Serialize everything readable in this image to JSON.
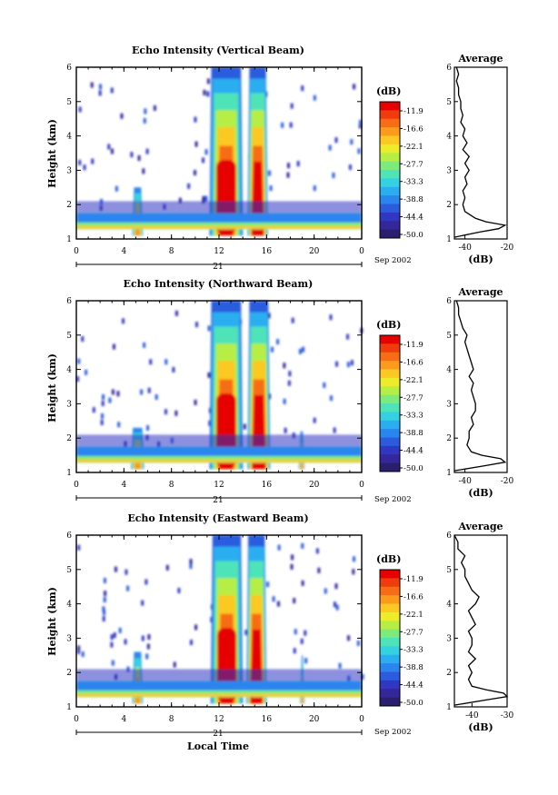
{
  "figure": {
    "month_label": "Sep 2002",
    "month_labels": [
      "Sep 2002",
      "Sep 2002",
      "Sep 2002"
    ],
    "xlabel": "Local Time",
    "date_tick": "21"
  },
  "chart_data": [
    {
      "type": "heatmap",
      "title": "Echo Intensity (Vertical Beam)",
      "ylabel": "Height (km)",
      "xlabel": "",
      "x_ticks": [
        "0",
        "4",
        "8",
        "12",
        "16",
        "20",
        "0"
      ],
      "x_range_hours": [
        0,
        24
      ],
      "y_ticks": [
        "1",
        "2",
        "3",
        "4",
        "5",
        "6"
      ],
      "ylim": [
        1,
        6
      ],
      "colorbar": {
        "unit": "(dB)",
        "labels": [
          "-11.9",
          "-16.6",
          "-22.1",
          "-27.7",
          "-33.3",
          "-38.8",
          "-44.4",
          "-50.0"
        ],
        "colors": [
          "#e60000",
          "#f03c0c",
          "#f76d16",
          "#fc9a1d",
          "#fcc824",
          "#ecec2b",
          "#b6ee44",
          "#7deb7c",
          "#4fe3b8",
          "#34d1e3",
          "#2aaef0",
          "#2a86ee",
          "#2c5bde",
          "#3037c2",
          "#33279a",
          "#2a1f6e"
        ]
      },
      "features": [
        {
          "name": "cloud-main",
          "t_start": 11.2,
          "t_end": 14.0,
          "top_km": 6.0
        },
        {
          "name": "cloud-secondary",
          "t_start": 14.4,
          "t_end": 16.1,
          "top_km": 6.0
        },
        {
          "name": "convection-5h",
          "t_start": 4.7,
          "t_end": 5.6,
          "top_km": 2.5
        },
        {
          "name": "boundary-layer",
          "t_start": 0,
          "t_end": 24,
          "top_km": 1.8
        }
      ],
      "average": {
        "title": "Average",
        "xlabel": "(dB)",
        "x_ticks": [
          "-40",
          "-20"
        ],
        "xlim": [
          -45,
          -20
        ],
        "y": [
          1.05,
          1.2,
          1.3,
          1.4,
          1.5,
          1.6,
          1.8,
          2.0,
          2.2,
          2.4,
          2.6,
          2.8,
          3.0,
          3.2,
          3.4,
          3.6,
          3.8,
          4.0,
          4.2,
          4.4,
          4.6,
          4.8,
          5.0,
          5.2,
          5.4,
          5.6,
          5.8,
          6.0
        ],
        "x": [
          -45,
          -33,
          -24,
          -21,
          -30,
          -35,
          -40,
          -41,
          -40,
          -41,
          -39,
          -40,
          -38,
          -40,
          -38,
          -41,
          -39,
          -41,
          -40,
          -42,
          -41,
          -42,
          -42,
          -43,
          -43,
          -44,
          -43,
          -44
        ]
      }
    },
    {
      "type": "heatmap",
      "title": "Echo Intensity (Northward Beam)",
      "ylabel": "Height (km)",
      "xlabel": "",
      "x_ticks": [
        "0",
        "4",
        "8",
        "12",
        "16",
        "20",
        "0"
      ],
      "x_range_hours": [
        0,
        24
      ],
      "y_ticks": [
        "1",
        "2",
        "3",
        "4",
        "5",
        "6"
      ],
      "ylim": [
        1,
        6
      ],
      "colorbar": {
        "unit": "(dB)",
        "labels": [
          "-11.9",
          "-16.6",
          "-22.1",
          "-27.7",
          "-33.3",
          "-38.8",
          "-44.4",
          "-50.0"
        ],
        "colors": [
          "#e60000",
          "#f03c0c",
          "#f76d16",
          "#fc9a1d",
          "#fcc824",
          "#ecec2b",
          "#b6ee44",
          "#7deb7c",
          "#4fe3b8",
          "#34d1e3",
          "#2aaef0",
          "#2a86ee",
          "#2c5bde",
          "#3037c2",
          "#33279a",
          "#2a1f6e"
        ]
      },
      "features": [
        {
          "name": "cloud-main",
          "t_start": 11.2,
          "t_end": 14.0,
          "top_km": 6.0
        },
        {
          "name": "cloud-secondary",
          "t_start": 14.4,
          "t_end": 16.3,
          "top_km": 6.0
        },
        {
          "name": "convection-5h",
          "t_start": 4.6,
          "t_end": 5.7,
          "top_km": 2.3
        },
        {
          "name": "convection-19h",
          "t_start": 18.7,
          "t_end": 19.2,
          "top_km": 2.2
        },
        {
          "name": "boundary-layer",
          "t_start": 0,
          "t_end": 24,
          "top_km": 1.8
        }
      ],
      "average": {
        "title": "Average",
        "xlabel": "(dB)",
        "x_ticks": [
          "-40",
          "-20"
        ],
        "xlim": [
          -45,
          -20
        ],
        "y": [
          1.05,
          1.2,
          1.3,
          1.4,
          1.5,
          1.6,
          1.8,
          2.0,
          2.2,
          2.4,
          2.6,
          2.8,
          3.0,
          3.2,
          3.4,
          3.6,
          3.8,
          4.0,
          4.2,
          4.4,
          4.6,
          4.8,
          5.0,
          5.2,
          5.4,
          5.6,
          5.8,
          6.0
        ],
        "x": [
          -45,
          -30,
          -21,
          -23,
          -32,
          -37,
          -39,
          -38,
          -38,
          -36,
          -37,
          -35,
          -35,
          -36,
          -37,
          -36,
          -38,
          -36,
          -37,
          -38,
          -39,
          -40,
          -39,
          -41,
          -42,
          -43,
          -43,
          -44
        ]
      }
    },
    {
      "type": "heatmap",
      "title": "Echo Intensity (Eastward Beam)",
      "ylabel": "Height (km)",
      "xlabel": "Local Time",
      "x_ticks": [
        "0",
        "4",
        "8",
        "12",
        "16",
        "20",
        "0"
      ],
      "x_range_hours": [
        0,
        24
      ],
      "y_ticks": [
        "1",
        "2",
        "3",
        "4",
        "5",
        "6"
      ],
      "ylim": [
        1,
        6
      ],
      "colorbar": {
        "unit": "(dB)",
        "labels": [
          "-11.9",
          "-16.6",
          "-22.1",
          "-27.7",
          "-33.3",
          "-38.8",
          "-44.4",
          "-50.0"
        ],
        "colors": [
          "#e60000",
          "#f03c0c",
          "#f76d16",
          "#fc9a1d",
          "#fcc824",
          "#ecec2b",
          "#b6ee44",
          "#7deb7c",
          "#4fe3b8",
          "#34d1e3",
          "#2aaef0",
          "#2a86ee",
          "#2c5bde",
          "#3037c2",
          "#33279a",
          "#2a1f6e"
        ]
      },
      "features": [
        {
          "name": "cloud-main",
          "t_start": 11.3,
          "t_end": 14.0,
          "top_km": 6.0
        },
        {
          "name": "cloud-secondary",
          "t_start": 14.3,
          "t_end": 16.0,
          "top_km": 6.0
        },
        {
          "name": "convection-5h",
          "t_start": 4.7,
          "t_end": 5.6,
          "top_km": 2.6
        },
        {
          "name": "convection-19h",
          "t_start": 18.8,
          "t_end": 19.2,
          "top_km": 2.5
        },
        {
          "name": "boundary-layer",
          "t_start": 0,
          "t_end": 24,
          "top_km": 1.9
        }
      ],
      "average": {
        "title": "Average",
        "xlabel": "(dB)",
        "x_ticks": [
          "-40",
          "-30"
        ],
        "xlim": [
          -45,
          -30
        ],
        "y": [
          1.05,
          1.2,
          1.3,
          1.4,
          1.5,
          1.6,
          1.8,
          2.0,
          2.2,
          2.4,
          2.6,
          2.8,
          3.0,
          3.2,
          3.4,
          3.6,
          3.8,
          4.0,
          4.2,
          4.4,
          4.6,
          4.8,
          5.0,
          5.2,
          5.4,
          5.6,
          5.8,
          6.0
        ],
        "x": [
          -45,
          -36,
          -30,
          -31,
          -36,
          -40,
          -41,
          -40,
          -41,
          -39,
          -41,
          -40,
          -40,
          -41,
          -39,
          -40,
          -41,
          -39,
          -38,
          -40,
          -41,
          -42,
          -42,
          -43,
          -42,
          -44,
          -44,
          -45
        ]
      }
    }
  ]
}
